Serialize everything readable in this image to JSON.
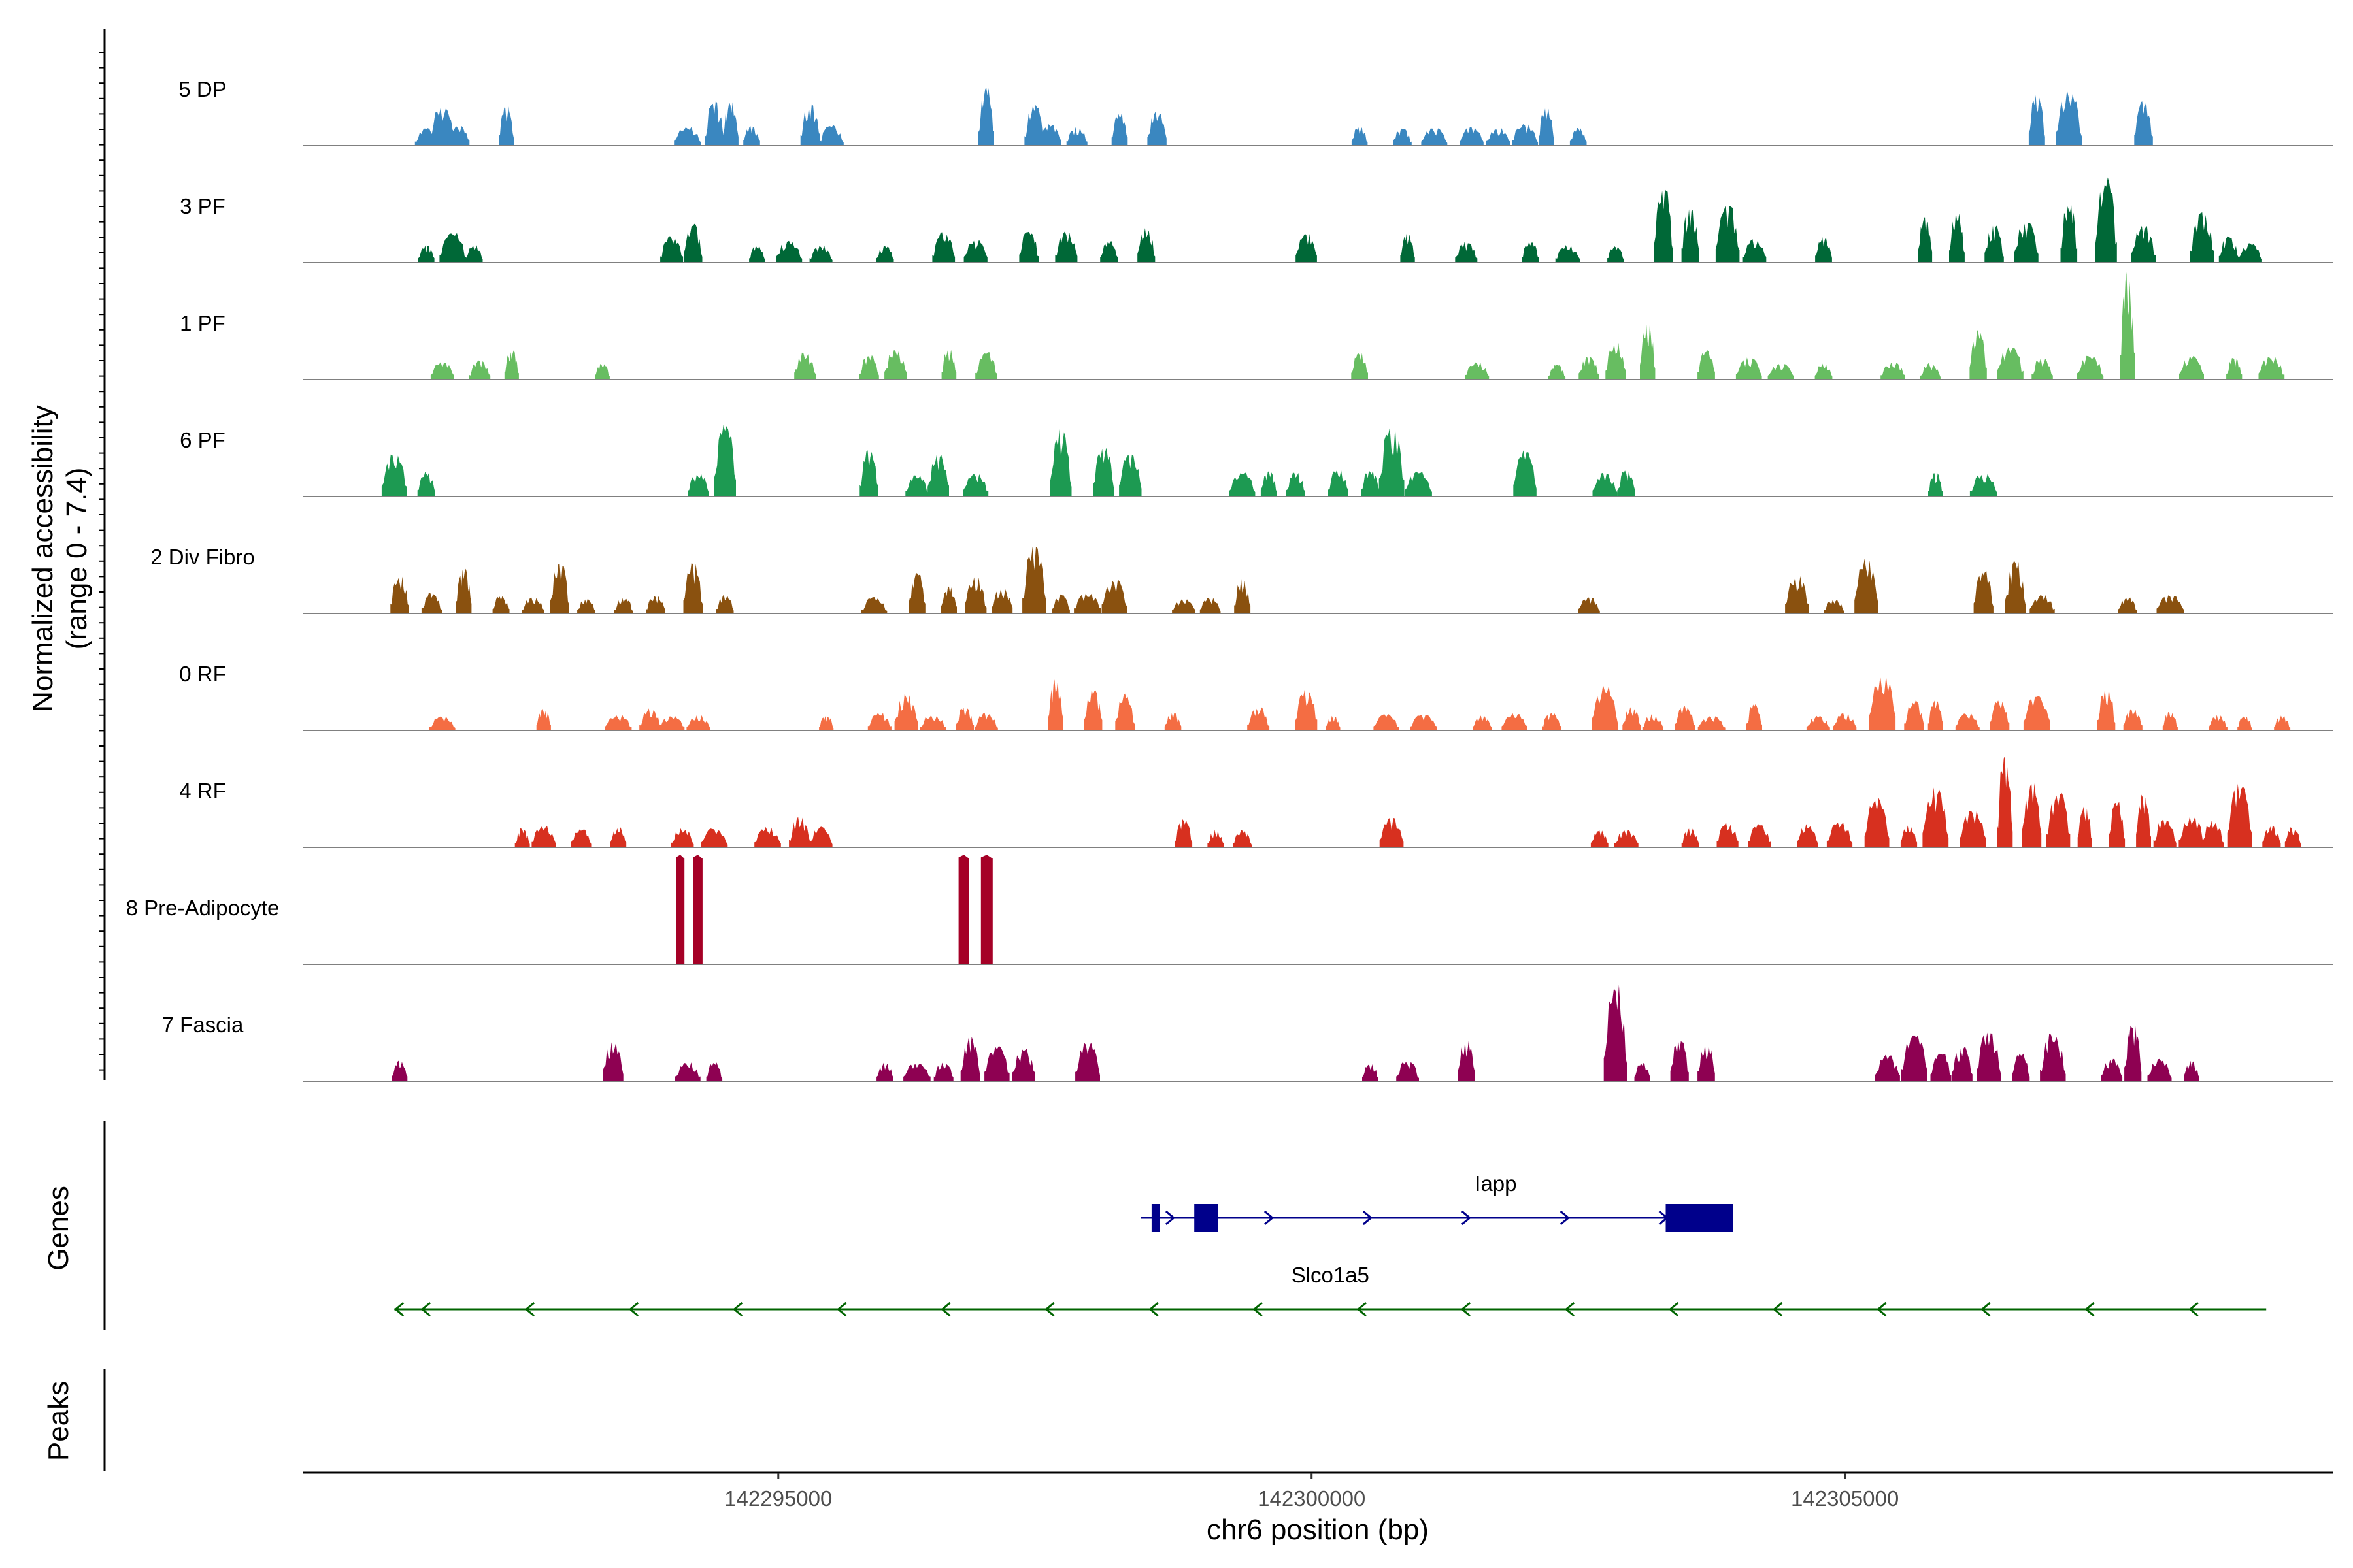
{
  "chart_data": {
    "type": "coverage",
    "y_axis_title_line1": "Normalized accessibility",
    "y_axis_title_line2": "(range 0 - 7.4)",
    "genes_panel_title": "Genes",
    "peaks_panel_title": "Peaks",
    "x_axis_title": "chr6 position (bp)",
    "x_range": [
      142290540,
      142309580
    ],
    "x_ticks": [
      142295000,
      142300000,
      142305000
    ],
    "x_tick_labels": [
      "142295000",
      "142300000",
      "142305000"
    ],
    "y_range": [
      0,
      7.4
    ],
    "tracks": [
      {
        "name": "5 DP",
        "color": "#3a87c0",
        "seed": 11,
        "peaks": [
          [
            142291700,
            1.2
          ],
          [
            142291850,
            2.8
          ],
          [
            142292000,
            1.4
          ],
          [
            142292450,
            2.8
          ],
          [
            142294150,
            1.3
          ],
          [
            142294400,
            3.0
          ],
          [
            142294550,
            3.0
          ],
          [
            142294750,
            1.4
          ],
          [
            142295300,
            2.8
          ],
          [
            142295500,
            1.4
          ],
          [
            142296950,
            4.0
          ],
          [
            142297400,
            2.8
          ],
          [
            142297550,
            1.5
          ],
          [
            142297800,
            1.3
          ],
          [
            142298200,
            2.3
          ],
          [
            142298550,
            2.4
          ],
          [
            142300450,
            1.3
          ],
          [
            142300850,
            1.2
          ],
          [
            142301150,
            1.2
          ],
          [
            142301500,
            1.3
          ],
          [
            142301750,
            1.2
          ],
          [
            142302000,
            1.5
          ],
          [
            142302200,
            2.7
          ],
          [
            142302500,
            1.2
          ],
          [
            142306800,
            3.6
          ],
          [
            142307100,
            3.8
          ],
          [
            142307800,
            3.0
          ]
        ]
      },
      {
        "name": "3 PF",
        "color": "#006837",
        "seed": 23,
        "peaks": [
          [
            142291700,
            1.2
          ],
          [
            142291950,
            2.1
          ],
          [
            142292150,
            1.2
          ],
          [
            142294000,
            1.8
          ],
          [
            142294200,
            2.6
          ],
          [
            142294800,
            1.2
          ],
          [
            142295100,
            1.5
          ],
          [
            142295400,
            1.2
          ],
          [
            142296000,
            1.2
          ],
          [
            142296550,
            2.1
          ],
          [
            142296850,
            1.6
          ],
          [
            142297350,
            2.2
          ],
          [
            142297700,
            2.1
          ],
          [
            142298100,
            1.5
          ],
          [
            142298450,
            2.4
          ],
          [
            142299950,
            2.0
          ],
          [
            142300900,
            2.0
          ],
          [
            142301450,
            1.4
          ],
          [
            142302050,
            1.5
          ],
          [
            142302400,
            1.2
          ],
          [
            142302850,
            1.2
          ],
          [
            142303300,
            5.2
          ],
          [
            142303550,
            3.9
          ],
          [
            142303900,
            4.0
          ],
          [
            142304150,
            1.6
          ],
          [
            142304800,
            1.8
          ],
          [
            142305750,
            3.1
          ],
          [
            142306050,
            3.4
          ],
          [
            142306400,
            2.6
          ],
          [
            142306700,
            2.8
          ],
          [
            142307100,
            4.1
          ],
          [
            142307450,
            5.8
          ],
          [
            142307800,
            2.5
          ],
          [
            142308350,
            3.5
          ],
          [
            142308600,
            1.8
          ],
          [
            142308800,
            1.3
          ]
        ]
      },
      {
        "name": "1 PF",
        "color": "#67bd61",
        "seed": 37,
        "peaks": [
          [
            142291850,
            1.2
          ],
          [
            142292200,
            1.3
          ],
          [
            142292500,
            2.0
          ],
          [
            142293350,
            1.1
          ],
          [
            142295250,
            1.9
          ],
          [
            142295850,
            1.7
          ],
          [
            142296100,
            2.1
          ],
          [
            142296600,
            2.1
          ],
          [
            142296950,
            1.9
          ],
          [
            142300450,
            1.9
          ],
          [
            142301550,
            1.2
          ],
          [
            142302300,
            1.0
          ],
          [
            142302600,
            1.6
          ],
          [
            142302850,
            2.6
          ],
          [
            142303150,
            4.0
          ],
          [
            142303700,
            2.0
          ],
          [
            142304100,
            1.5
          ],
          [
            142304400,
            1.1
          ],
          [
            142304800,
            1.1
          ],
          [
            142305450,
            1.2
          ],
          [
            142305800,
            1.1
          ],
          [
            142306250,
            3.4
          ],
          [
            142306550,
            2.4
          ],
          [
            142306850,
            1.5
          ],
          [
            142307300,
            1.7
          ],
          [
            142307650,
            7.2
          ],
          [
            142308250,
            1.6
          ],
          [
            142308650,
            1.5
          ],
          [
            142309000,
            1.6
          ]
        ]
      },
      {
        "name": "6 PF",
        "color": "#1d9a52",
        "seed": 41,
        "peaks": [
          [
            142291400,
            3.0
          ],
          [
            142291700,
            1.7
          ],
          [
            142294250,
            1.6
          ],
          [
            142294500,
            5.0
          ],
          [
            142295850,
            3.2
          ],
          [
            142296300,
            1.5
          ],
          [
            142296500,
            2.9
          ],
          [
            142296850,
            1.6
          ],
          [
            142297650,
            4.6
          ],
          [
            142298050,
            3.4
          ],
          [
            142298300,
            3.0
          ],
          [
            142299350,
            1.7
          ],
          [
            142299600,
            1.8
          ],
          [
            142299850,
            1.7
          ],
          [
            142300250,
            1.9
          ],
          [
            142300550,
            1.9
          ],
          [
            142300750,
            4.8
          ],
          [
            142301000,
            1.7
          ],
          [
            142302000,
            3.2
          ],
          [
            142302750,
            1.6
          ],
          [
            142302950,
            1.8
          ],
          [
            142305850,
            1.6
          ],
          [
            142306300,
            1.6
          ]
        ]
      },
      {
        "name": "2 Div Fibro",
        "color": "#8a510f",
        "seed": 53,
        "peaks": [
          [
            142291450,
            2.6
          ],
          [
            142291750,
            1.4
          ],
          [
            142292050,
            3.1
          ],
          [
            142292400,
            1.2
          ],
          [
            142292700,
            1.1
          ],
          [
            142292950,
            3.5
          ],
          [
            142293200,
            1.0
          ],
          [
            142293550,
            1.1
          ],
          [
            142293850,
            1.2
          ],
          [
            142294200,
            3.5
          ],
          [
            142294500,
            1.3
          ],
          [
            142295900,
            1.1
          ],
          [
            142296300,
            2.8
          ],
          [
            142296600,
            1.8
          ],
          [
            142296850,
            2.5
          ],
          [
            142297100,
            1.8
          ],
          [
            142297400,
            4.5
          ],
          [
            142297650,
            1.3
          ],
          [
            142297900,
            1.4
          ],
          [
            142298150,
            2.4
          ],
          [
            142298800,
            1.0
          ],
          [
            142299050,
            1.1
          ],
          [
            142299350,
            2.4
          ],
          [
            142302600,
            1.1
          ],
          [
            142304550,
            2.6
          ],
          [
            142304900,
            1.0
          ],
          [
            142305200,
            3.8
          ],
          [
            142306300,
            2.9
          ],
          [
            142306600,
            3.6
          ],
          [
            142306850,
            1.3
          ],
          [
            142307650,
            1.1
          ],
          [
            142308050,
            1.3
          ]
        ]
      },
      {
        "name": "0 RF",
        "color": "#f46d43",
        "seed": 67,
        "peaks": [
          [
            142291850,
            1.0
          ],
          [
            142292800,
            1.5
          ],
          [
            142293500,
            1.1
          ],
          [
            142293800,
            1.5
          ],
          [
            142294000,
            1.0
          ],
          [
            142294250,
            1.1
          ],
          [
            142295450,
            1.0
          ],
          [
            142295950,
            1.2
          ],
          [
            142296200,
            2.5
          ],
          [
            142296450,
            1.1
          ],
          [
            142296750,
            1.6
          ],
          [
            142296950,
            1.2
          ],
          [
            142297600,
            3.5
          ],
          [
            142297950,
            2.8
          ],
          [
            142298250,
            2.5
          ],
          [
            142298700,
            1.2
          ],
          [
            142299500,
            1.6
          ],
          [
            142299950,
            2.9
          ],
          [
            142300200,
            1.0
          ],
          [
            142300700,
            1.1
          ],
          [
            142301050,
            1.1
          ],
          [
            142301600,
            1.0
          ],
          [
            142301900,
            1.2
          ],
          [
            142302250,
            1.2
          ],
          [
            142302750,
            3.1
          ],
          [
            142303000,
            1.6
          ],
          [
            142303200,
            1.1
          ],
          [
            142303500,
            1.7
          ],
          [
            142303750,
            1.0
          ],
          [
            142304150,
            1.8
          ],
          [
            142304750,
            1.0
          ],
          [
            142305000,
            1.2
          ],
          [
            142305350,
            4.0
          ],
          [
            142305650,
            2.0
          ],
          [
            142305850,
            2.0
          ],
          [
            142306150,
            1.2
          ],
          [
            142306450,
            2.1
          ],
          [
            142306800,
            2.4
          ],
          [
            142307450,
            3.0
          ],
          [
            142307700,
            1.5
          ],
          [
            142308050,
            1.3
          ],
          [
            142308500,
            1.1
          ],
          [
            142308750,
            1.0
          ],
          [
            142309100,
            1.0
          ]
        ]
      },
      {
        "name": "4 RF",
        "color": "#d7301f",
        "seed": 71,
        "peaks": [
          [
            142292600,
            1.3
          ],
          [
            142292800,
            1.5
          ],
          [
            142293150,
            1.3
          ],
          [
            142293500,
            1.4
          ],
          [
            142294100,
            1.3
          ],
          [
            142294400,
            1.3
          ],
          [
            142294900,
            1.4
          ],
          [
            142295200,
            2.1
          ],
          [
            142295400,
            1.4
          ],
          [
            142298800,
            2.0
          ],
          [
            142299100,
            1.2
          ],
          [
            142299350,
            1.2
          ],
          [
            142300750,
            2.0
          ],
          [
            142302700,
            1.2
          ],
          [
            142302950,
            1.2
          ],
          [
            142303550,
            1.3
          ],
          [
            142303900,
            1.7
          ],
          [
            142304200,
            1.6
          ],
          [
            142304650,
            1.6
          ],
          [
            142304950,
            1.8
          ],
          [
            142305300,
            3.4
          ],
          [
            142305600,
            1.5
          ],
          [
            142305850,
            4.1
          ],
          [
            142306200,
            2.7
          ],
          [
            142306500,
            6.2
          ],
          [
            142306750,
            4.4
          ],
          [
            142307000,
            3.8
          ],
          [
            142307250,
            2.8
          ],
          [
            142307550,
            3.1
          ],
          [
            142307800,
            3.7
          ],
          [
            142308000,
            2.0
          ],
          [
            142308250,
            2.2
          ],
          [
            142308450,
            1.8
          ],
          [
            142308700,
            4.3
          ],
          [
            142309000,
            1.5
          ],
          [
            142309200,
            1.4
          ]
        ]
      },
      {
        "name": "8 Pre-Adipocyte",
        "color": "#a50026",
        "seed": 83,
        "peaks": [],
        "blocks": [
          [
            142294040,
            142294120,
            7.3
          ],
          [
            142294200,
            142294290,
            7.3
          ],
          [
            142296690,
            142296790,
            7.3
          ],
          [
            142296900,
            142297010,
            7.3
          ]
        ]
      },
      {
        "name": "7 Fascia",
        "color": "#8e0152",
        "seed": 97,
        "peaks": [
          [
            142291450,
            1.4
          ],
          [
            142293450,
            2.8
          ],
          [
            142294150,
            1.3
          ],
          [
            142294400,
            1.3
          ],
          [
            142296000,
            1.3
          ],
          [
            142296300,
            1.3
          ],
          [
            142296550,
            1.3
          ],
          [
            142296800,
            3.0
          ],
          [
            142297050,
            2.5
          ],
          [
            142297300,
            2.3
          ],
          [
            142297900,
            2.7
          ],
          [
            142300550,
            1.2
          ],
          [
            142300900,
            1.4
          ],
          [
            142301450,
            2.8
          ],
          [
            142302850,
            6.7
          ],
          [
            142303100,
            1.3
          ],
          [
            142303450,
            2.9
          ],
          [
            142303700,
            2.6
          ],
          [
            142305400,
            1.8
          ],
          [
            142305650,
            3.3
          ],
          [
            142305900,
            2.0
          ],
          [
            142306100,
            2.4
          ],
          [
            142306350,
            3.4
          ],
          [
            142306650,
            1.9
          ],
          [
            142306950,
            3.3
          ],
          [
            142307500,
            1.5
          ],
          [
            142307700,
            4.0
          ],
          [
            142307950,
            1.5
          ],
          [
            142308250,
            1.4
          ]
        ]
      }
    ],
    "genes": [
      {
        "name": "Iapp",
        "color": "#00008b",
        "strand": "+",
        "start": 142298400,
        "end": 142303950,
        "exons": [
          [
            142298500,
            142298580
          ],
          [
            142298900,
            142299120
          ],
          [
            142303320,
            142303950
          ]
        ]
      },
      {
        "name": "Slco1a5",
        "color": "#006400",
        "strand": "-",
        "start": 142291400,
        "end": 142308950,
        "exons": []
      }
    ]
  }
}
